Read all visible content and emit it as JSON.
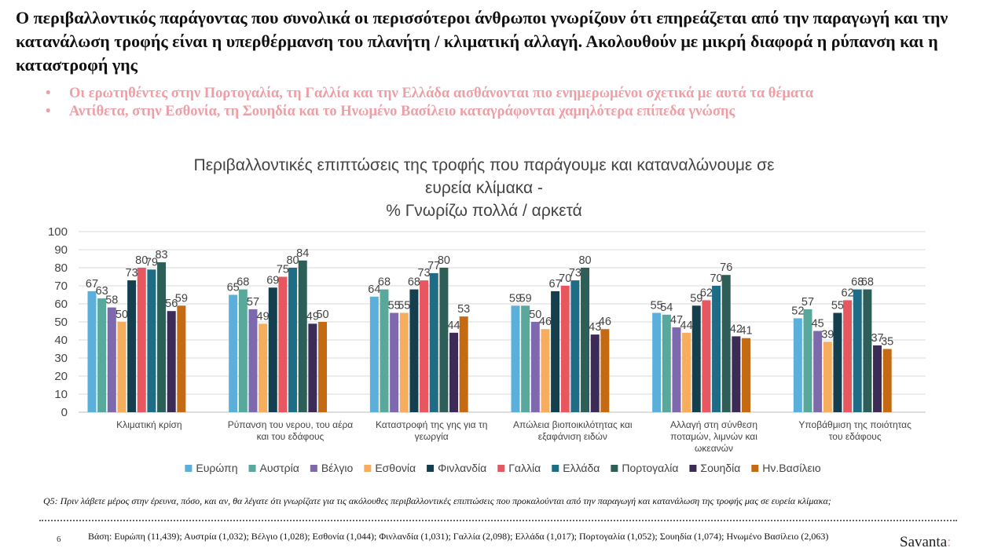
{
  "slide": {
    "headline": "Ο περιβαλλοντικός παράγοντας που συνολικά οι περισσότεροι άνθρωποι γνωρίζουν ότι επηρεάζεται από την παραγωγή και την κατανάλωση τροφής είναι η υπερθέρμανση του πλανήτη / κλιματική αλλαγή. Ακολουθούν με μικρή διαφορά η ρύπανση και η καταστροφή γης",
    "bullets": [
      "Οι ερωτηθέντες στην Πορτογαλία, τη Γαλλία και την Ελλάδα αισθάνονται πιο ενημερωμένοι σχετικά με αυτά τα θέματα",
      "Αντίθετα, στην Εσθονία, τη Σουηδία και το Ηνωμένο Βασίλειο καταγράφονται χαμηλότερα επίπεδα γνώσης"
    ],
    "question": "Q5: Πριν λάβετε μέρος στην έρευνα, πόσο, και αν, θα λέγατε ότι γνωρίζατε για τις ακόλουθες περιβαλλοντικές επιπτώσεις που προκαλούνται από την παραγωγή και κατανάλωση της τροφής μας σε ευρεία κλίμακα;",
    "page_number": "6",
    "base": "Βάση: Ευρώπη (11,439); Αυστρία (1,032); Βέλγιο (1,028); Εσθονία (1,044); Φινλανδία (1,031); Γαλλία (2,098); Ελλάδα (1,017); Πορτογαλία (1,052); Σουηδία (1,074); Ηνωμένο Βασίλειο (2,063)",
    "logo_text": "Savanta",
    "logo_mark": ":"
  },
  "chart_data": {
    "type": "bar",
    "title": [
      "Περιβαλλοντικές επιπτώσεις της τροφής που παράγουμε και καταναλώνουμε σε",
      "ευρεία κλίμακα -",
      "% Γνωρίζω πολλά / αρκετά"
    ],
    "ylim": [
      0,
      100
    ],
    "yticks": [
      "0",
      "10",
      "20",
      "30",
      "40",
      "50",
      "60",
      "70",
      "80",
      "90",
      "100"
    ],
    "grid": true,
    "legend_position": "bottom",
    "categories": [
      [
        "Κλιματική κρίση"
      ],
      [
        "Ρύπανση του νερου, του αέρα",
        "και του εδάφους"
      ],
      [
        "Καταστροφή της γης για τη",
        "γεωργία"
      ],
      [
        "Απώλεια βιοποικιλότητας και",
        "εξαφάνιση ειδών"
      ],
      [
        "Αλλαγή στη σύνθεση",
        "ποταμών, λιμνών και",
        "ωκεανών"
      ],
      [
        "Υποβάθμιση της ποιότητας",
        "του εδάφους"
      ]
    ],
    "series": [
      {
        "name": "Ευρώπη",
        "color": "#5aafdb",
        "values": [
          67,
          65,
          64,
          59,
          55,
          52
        ]
      },
      {
        "name": "Αυστρία",
        "color": "#58a89b",
        "values": [
          63,
          68,
          68,
          59,
          54,
          57
        ]
      },
      {
        "name": "Βέλγιο",
        "color": "#7f69ae",
        "values": [
          58,
          57,
          55,
          50,
          47,
          45
        ]
      },
      {
        "name": "Εσθονία",
        "color": "#f6ad5d",
        "values": [
          50,
          49,
          55,
          46,
          44,
          39
        ]
      },
      {
        "name": "Φινλανδία",
        "color": "#133f4f",
        "values": [
          73,
          69,
          68,
          67,
          59,
          55
        ]
      },
      {
        "name": "Γαλλία",
        "color": "#e85660",
        "values": [
          80,
          75,
          73,
          70,
          62,
          62
        ]
      },
      {
        "name": "Ελλάδα",
        "color": "#1f6c86",
        "values": [
          79,
          80,
          77,
          73,
          70,
          68
        ]
      },
      {
        "name": "Πορτογαλία",
        "color": "#2e5e58",
        "values": [
          83,
          84,
          80,
          80,
          76,
          68
        ]
      },
      {
        "name": "Σουηδία",
        "color": "#3b2b56",
        "values": [
          56,
          49,
          44,
          43,
          42,
          37
        ]
      },
      {
        "name": "Ην.Βασίλειο",
        "color": "#c46a12",
        "values": [
          59,
          50,
          53,
          46,
          41,
          35
        ]
      }
    ]
  }
}
